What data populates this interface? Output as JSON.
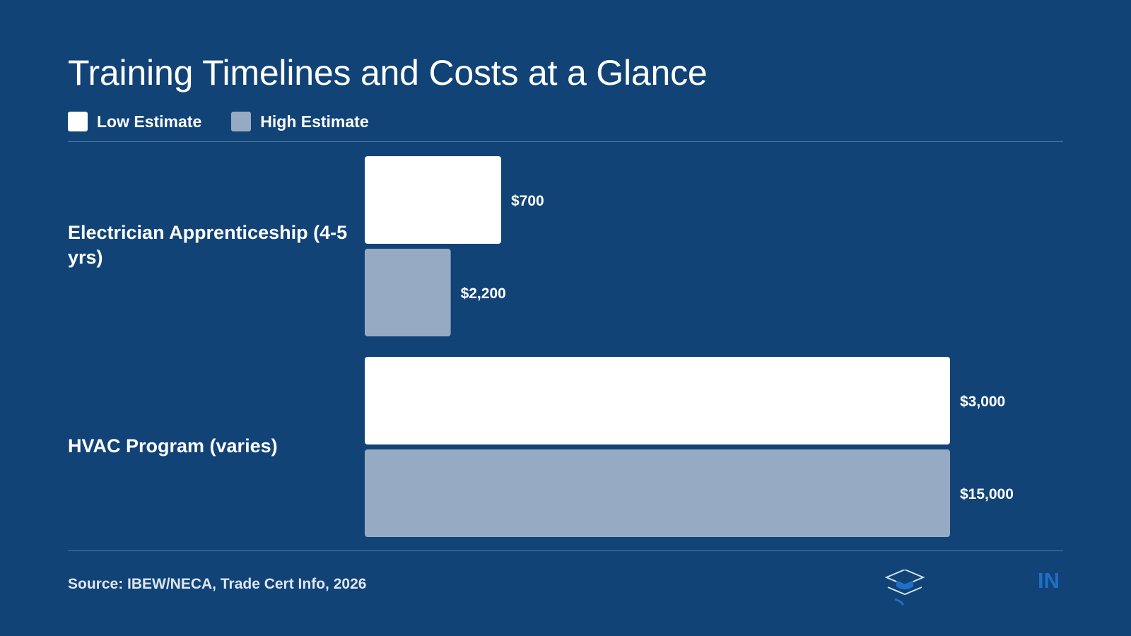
{
  "chart_data": {
    "type": "bar",
    "orientation": "horizontal",
    "title": "Training Timelines and Costs at a Glance",
    "categories": [
      "Electrician Apprenticeship (4-5 yrs)",
      "HVAC Program (varies)"
    ],
    "series": [
      {
        "name": "Low Estimate",
        "color": "#ffffff",
        "values": [
          700,
          3000
        ],
        "labels": [
          "$700",
          "$3,000"
        ]
      },
      {
        "name": "High Estimate",
        "color": "#96abc3",
        "values": [
          2200,
          15000
        ],
        "labels": [
          "$2,200",
          "$15,000"
        ]
      }
    ],
    "legend": "top-left",
    "grid": false
  },
  "footer": {
    "source": "Source: IBEW/NECA, Trade Cert Info, 2026",
    "logo_icon": "graduation-cap-book-icon",
    "brand_text": "IN",
    "brand_color": "#1f6fc7"
  },
  "colors": {
    "background": "#114377",
    "divider": "#4f7aa8"
  }
}
